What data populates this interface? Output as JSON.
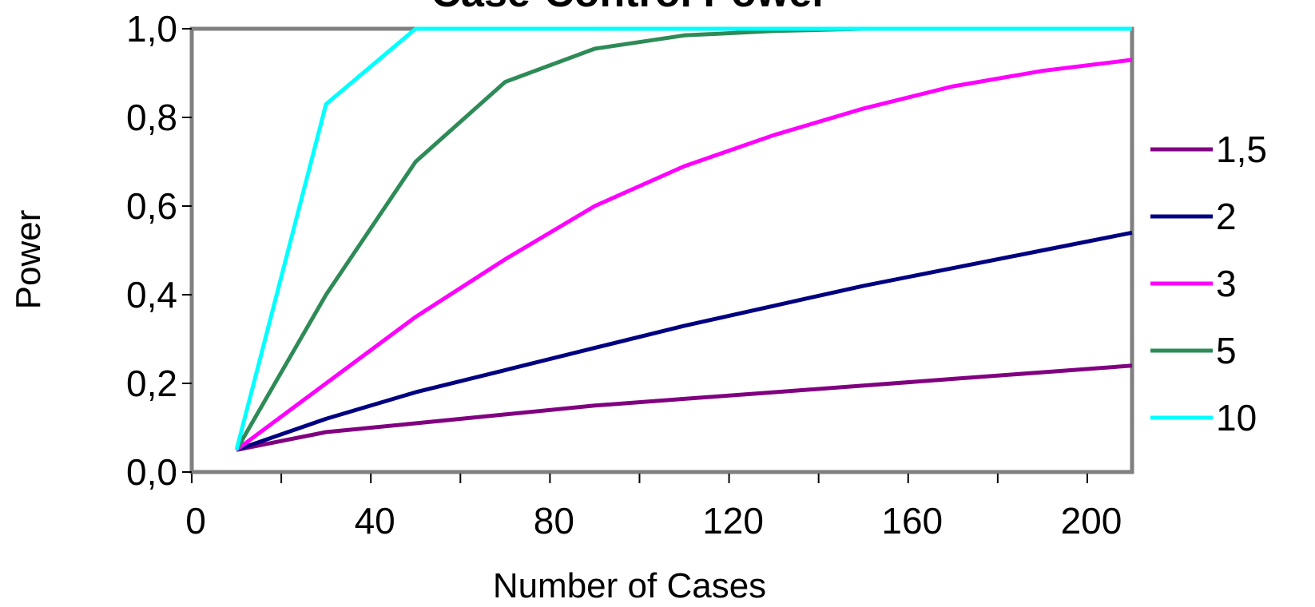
{
  "chart_data": {
    "type": "line",
    "title": "Case-Control Power",
    "xlabel": "Number of Cases",
    "ylabel": "Power",
    "xlim": [
      0,
      210
    ],
    "ylim": [
      0,
      1
    ],
    "x_ticks": [
      0,
      40,
      80,
      120,
      160,
      200
    ],
    "x_tick_labels": [
      "0",
      "40",
      "80",
      "120",
      "160",
      "200"
    ],
    "y_ticks": [
      0,
      0.2,
      0.4,
      0.6,
      0.8,
      1.0
    ],
    "y_tick_labels": [
      "0,0",
      "0,2",
      "0,4",
      "0,6",
      "0,8",
      "1,0"
    ],
    "legend_position": "right",
    "grid": false,
    "x": [
      10,
      30,
      50,
      70,
      90,
      110,
      130,
      150,
      170,
      190,
      210
    ],
    "series": [
      {
        "name": "1,5",
        "color": "#800080",
        "values": [
          0.05,
          0.09,
          0.11,
          0.13,
          0.15,
          0.165,
          0.18,
          0.195,
          0.21,
          0.225,
          0.24
        ]
      },
      {
        "name": "2",
        "color": "#000080",
        "values": [
          0.05,
          0.12,
          0.18,
          0.23,
          0.28,
          0.33,
          0.375,
          0.42,
          0.46,
          0.5,
          0.54
        ]
      },
      {
        "name": "3",
        "color": "#ff00ff",
        "values": [
          0.05,
          0.2,
          0.35,
          0.48,
          0.6,
          0.69,
          0.76,
          0.82,
          0.87,
          0.905,
          0.93
        ]
      },
      {
        "name": "5",
        "color": "#2e8b57",
        "values": [
          0.05,
          0.4,
          0.7,
          0.88,
          0.955,
          0.985,
          0.995,
          1.0,
          1.0,
          1.0,
          1.0
        ]
      },
      {
        "name": "10",
        "color": "#00ffff",
        "values": [
          0.05,
          0.83,
          1.0,
          1.0,
          1.0,
          1.0,
          1.0,
          1.0,
          1.0,
          1.0,
          1.0
        ]
      }
    ]
  }
}
